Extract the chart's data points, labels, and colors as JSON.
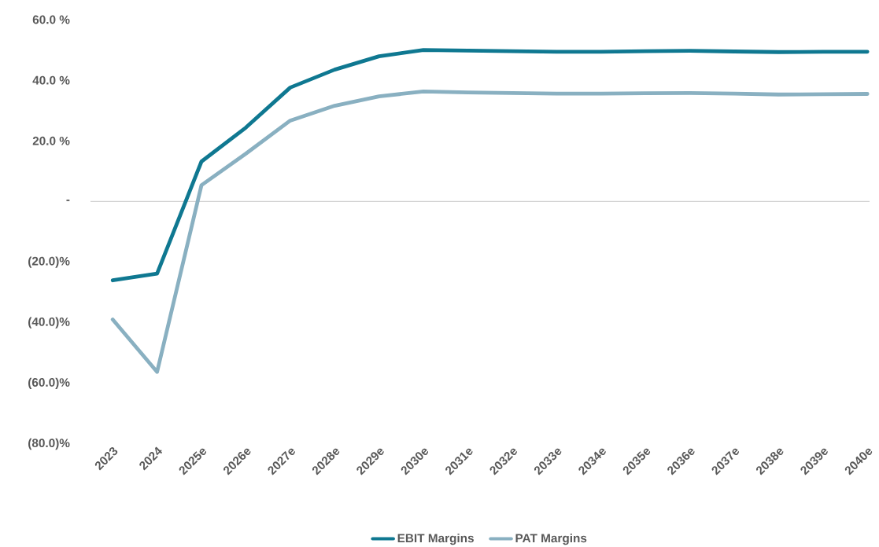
{
  "chart_data": {
    "type": "line",
    "categories": [
      "2023",
      "2024",
      "2025e",
      "2026e",
      "2027e",
      "2028e",
      "2029e",
      "2030e",
      "2031e",
      "2032e",
      "2033e",
      "2034e",
      "2035e",
      "2036e",
      "2037e",
      "2038e",
      "2039e",
      "2040e"
    ],
    "series": [
      {
        "name": "EBIT Margins",
        "color": "#0f7891",
        "values": [
          -26,
          -23.8,
          13.2,
          24.4,
          37.6,
          43.5,
          47.9,
          50.0,
          49.8,
          49.6,
          49.4,
          49.4,
          49.6,
          49.7,
          49.5,
          49.3,
          49.4,
          49.4
        ]
      },
      {
        "name": "PAT Margins",
        "color": "#89b0c1",
        "values": [
          -38.9,
          -56.2,
          5.4,
          15.8,
          26.7,
          31.6,
          34.7,
          36.3,
          36.0,
          35.8,
          35.6,
          35.6,
          35.7,
          35.8,
          35.6,
          35.3,
          35.4,
          35.5
        ]
      }
    ],
    "ylim": [
      -80,
      60
    ],
    "yticks": [
      {
        "value": 60,
        "label": "60.0 %"
      },
      {
        "value": 40,
        "label": "40.0 %"
      },
      {
        "value": 20,
        "label": "20.0 %"
      },
      {
        "value": 0,
        "label": "-"
      },
      {
        "value": -20,
        "label": "(20.0)%"
      },
      {
        "value": -40,
        "label": "(40.0)%"
      },
      {
        "value": -60,
        "label": "(60.0)%"
      },
      {
        "value": -80,
        "label": "(80.0)%"
      }
    ],
    "legend": "bottom",
    "marker": "none",
    "line_style": "solid"
  }
}
